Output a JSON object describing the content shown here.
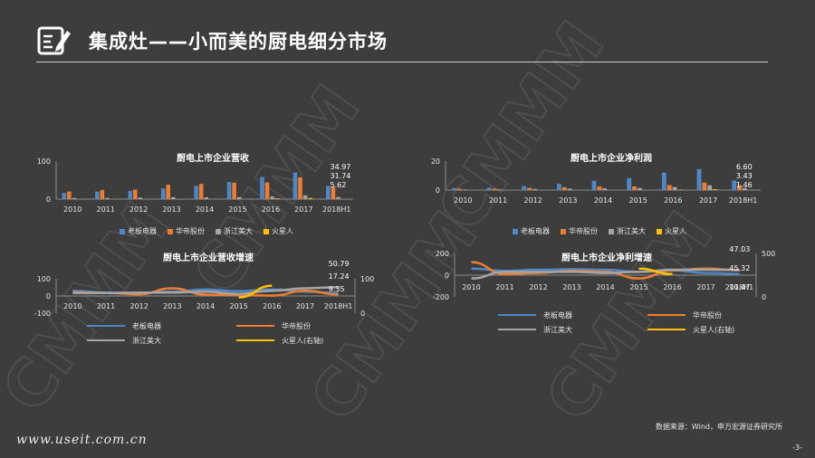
{
  "page": {
    "title": "集成灶——小而美的厨电细分市场",
    "source": "数据来源：Wind，申万宏源证券研究所",
    "page_number": "-3-",
    "site": "www.useit.com.cn"
  },
  "colors": {
    "老板电器": "#4f86c6",
    "华帝股份": "#ed7d31",
    "浙江美大": "#a5a5a5",
    "火星人": "#ffc000"
  },
  "chart_data": [
    {
      "id": "revenue",
      "type": "bar",
      "title": "厨电上市企业营收",
      "categories": [
        "2010",
        "2011",
        "2012",
        "2013",
        "2014",
        "2015",
        "2016",
        "2017",
        "2018H1"
      ],
      "ylim": [
        0,
        100
      ],
      "yticks": [
        "100",
        "0"
      ],
      "series": [
        {
          "name": "老板电器",
          "values": [
            16,
            20,
            22,
            28,
            35,
            45,
            58,
            70,
            34.97
          ]
        },
        {
          "name": "华帝股份",
          "values": [
            20,
            24,
            25,
            38,
            40,
            43,
            44,
            57,
            31.74
          ]
        },
        {
          "name": "浙江美大",
          "values": [
            3,
            3,
            4,
            5,
            5,
            5,
            7,
            10,
            5.62
          ]
        },
        {
          "name": "火星人",
          "values": [
            0,
            0,
            0,
            0,
            0,
            0,
            2,
            3,
            0
          ]
        }
      ],
      "labels": [
        "34.97",
        "31.74",
        "5.62"
      ],
      "legend": [
        "老板电器",
        "华帝股份",
        "浙江美大",
        "火星人"
      ]
    },
    {
      "id": "profit",
      "type": "bar",
      "title": "厨电上市企业净利润",
      "categories": [
        "2010",
        "2011",
        "2012",
        "2013",
        "2014",
        "2015",
        "2016",
        "2017",
        "2018H1"
      ],
      "ylim": [
        0,
        20
      ],
      "yticks": [
        "20",
        "0"
      ],
      "series": [
        {
          "name": "老板电器",
          "values": [
            1.4,
            1.7,
            2.8,
            4.3,
            6.5,
            8.3,
            12.1,
            14.5,
            6.6
          ]
        },
        {
          "name": "华帝股份",
          "values": [
            1.0,
            1.0,
            1.5,
            2.0,
            2.6,
            2.5,
            3.5,
            5.2,
            3.43
          ]
        },
        {
          "name": "浙江美大",
          "values": [
            0.4,
            0.5,
            0.8,
            1.0,
            1.2,
            1.4,
            2.1,
            3.3,
            1.46
          ]
        },
        {
          "name": "火星人",
          "values": [
            0,
            0,
            0,
            0,
            0,
            0,
            0.3,
            0.6,
            0
          ]
        }
      ],
      "labels": [
        "6.60",
        "3.43",
        "1.46"
      ],
      "legend": [
        "老板电器",
        "华帝股份",
        "浙江美大",
        "火星人"
      ]
    },
    {
      "id": "revenue_growth",
      "type": "line",
      "title": "厨电上市企业营收增速",
      "categories": [
        "2010",
        "2011",
        "2012",
        "2013",
        "2014",
        "2015",
        "2016",
        "2017",
        "2018H1"
      ],
      "ylim": [
        -100,
        100
      ],
      "yticks": [
        "100",
        "0",
        "-100"
      ],
      "y2ticks": [
        "100",
        "0"
      ],
      "series": [
        {
          "name": "老板电器",
          "values": [
            30,
            20,
            18,
            25,
            38,
            28,
            38,
            25,
            17.24
          ]
        },
        {
          "name": "华帝股份",
          "values": [
            22,
            18,
            10,
            45,
            8,
            5,
            2,
            30,
            9.35
          ]
        },
        {
          "name": "浙江美大",
          "values": [
            18,
            17,
            20,
            20,
            25,
            12,
            30,
            45,
            50.79
          ]
        },
        {
          "name": "火星人(右轴)",
          "values": [
            null,
            null,
            null,
            null,
            null,
            -8,
            60,
            null,
            null
          ]
        }
      ],
      "labels": [
        "50.79",
        "17.24",
        "9.35"
      ],
      "legend": [
        "老板电器",
        "华帝股份",
        "浙江美大",
        "火星人(右轴)"
      ]
    },
    {
      "id": "profit_growth",
      "type": "line",
      "title": "厨电上市企业净利增速",
      "categories": [
        "2010",
        "2011",
        "2012",
        "2013",
        "2014",
        "2015",
        "2016",
        "2017",
        "2018H1"
      ],
      "ylim": [
        -200,
        200
      ],
      "yticks": [
        "200",
        "0",
        "-200"
      ],
      "y2ticks": [
        "500",
        "0"
      ],
      "series": [
        {
          "name": "老板电器",
          "values": [
            60,
            40,
            50,
            55,
            50,
            30,
            45,
            20,
            10.47
          ]
        },
        {
          "name": "华帝股份",
          "values": [
            120,
            10,
            20,
            40,
            30,
            -30,
            45,
            60,
            45.32
          ]
        },
        {
          "name": "浙江美大",
          "values": [
            -30,
            30,
            30,
            30,
            20,
            30,
            50,
            50,
            47.03
          ]
        },
        {
          "name": "火星人(右轴)",
          "values": [
            null,
            null,
            null,
            null,
            null,
            60,
            10,
            null,
            null
          ]
        }
      ],
      "labels": [
        "47.03",
        "45.32",
        "10.47"
      ],
      "legend": [
        "老板电器",
        "华帝股份",
        "浙江美大",
        "火星人(右轴)"
      ]
    }
  ]
}
